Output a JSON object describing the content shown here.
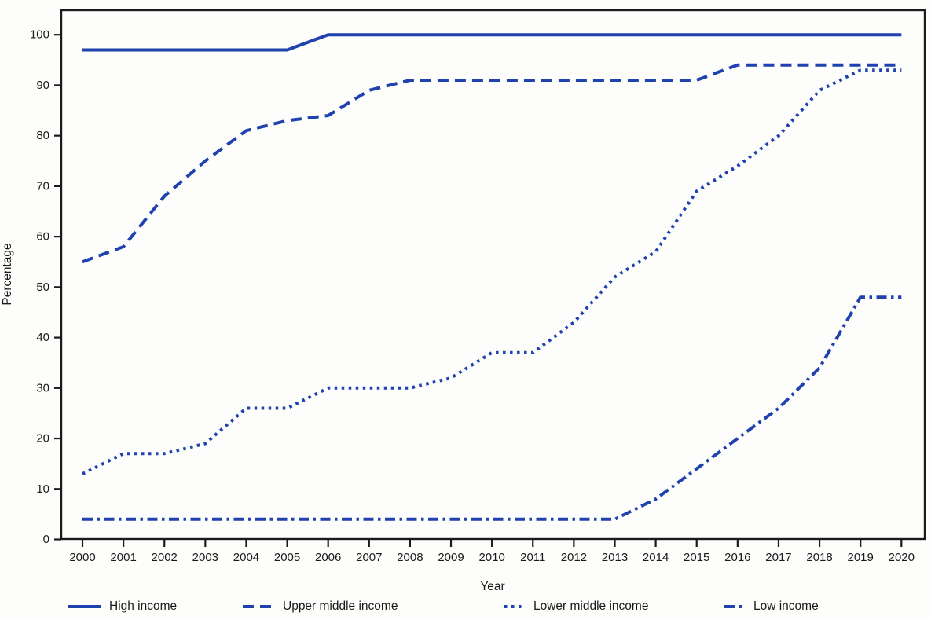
{
  "figure": {
    "background": "#fdfdfb",
    "line_color": "#1F42AE",
    "axis_color": "#1a1a1a"
  },
  "chart_data": {
    "type": "line",
    "x": [
      2000,
      2001,
      2002,
      2003,
      2004,
      2005,
      2006,
      2007,
      2008,
      2009,
      2010,
      2011,
      2012,
      2013,
      2014,
      2015,
      2016,
      2017,
      2018,
      2019,
      2020
    ],
    "series": [
      {
        "name": "High income",
        "style": "solid",
        "values": [
          97,
          97,
          97,
          97,
          97,
          97,
          100,
          100,
          100,
          100,
          100,
          100,
          100,
          100,
          100,
          100,
          100,
          100,
          100,
          100,
          100
        ]
      },
      {
        "name": "Upper middle income",
        "style": "dashed",
        "values": [
          55,
          58,
          68,
          75,
          81,
          83,
          84,
          89,
          91,
          91,
          91,
          91,
          91,
          91,
          91,
          91,
          94,
          94,
          94,
          94,
          94
        ]
      },
      {
        "name": "Lower middle income",
        "style": "dotted",
        "values": [
          13,
          17,
          17,
          19,
          26,
          26,
          30,
          30,
          30,
          32,
          37,
          37,
          43,
          52,
          57,
          69,
          74,
          80,
          89,
          93,
          93
        ]
      },
      {
        "name": "Low income",
        "style": "dashdot",
        "values": [
          4,
          4,
          4,
          4,
          4,
          4,
          4,
          4,
          4,
          4,
          4,
          4,
          4,
          4,
          8,
          14,
          20,
          26,
          34,
          48,
          48
        ]
      }
    ],
    "title": "",
    "xlabel": "Year",
    "ylabel": "Percentage",
    "xticks": [
      2000,
      2001,
      2002,
      2003,
      2004,
      2005,
      2006,
      2007,
      2008,
      2009,
      2010,
      2011,
      2012,
      2013,
      2014,
      2015,
      2016,
      2017,
      2018,
      2019,
      2020
    ],
    "yticks": [
      0,
      10,
      20,
      30,
      40,
      50,
      60,
      70,
      80,
      90,
      100
    ],
    "ylim": [
      0,
      104.8
    ],
    "xlim": [
      1999.48,
      2020.58
    ],
    "grid": false,
    "legend_position": "bottom"
  }
}
